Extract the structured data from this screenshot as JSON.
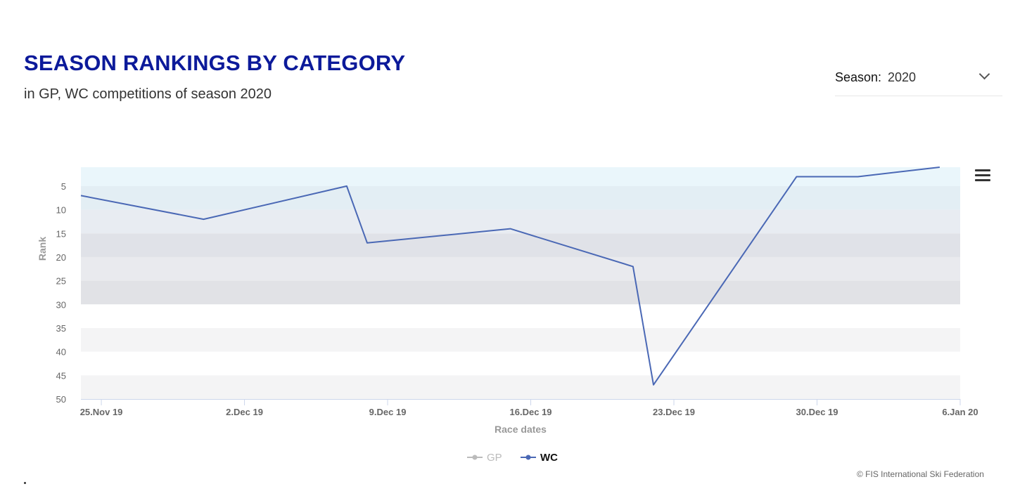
{
  "header": {
    "title": "SEASON RANKINGS BY CATEGORY",
    "subtitle": "in GP, WC competitions of season 2020"
  },
  "season_select": {
    "label": "Season:",
    "value": "2020",
    "icon": "chevron-down-icon"
  },
  "menu": {
    "icon": "hamburger-menu-icon"
  },
  "credit": "© FIS International Ski Federation",
  "chart_data": {
    "type": "line",
    "xlabel": "Race dates",
    "ylabel": "Rank",
    "x_axis_type": "datetime",
    "xlim": [
      "2019-11-24",
      "2020-01-06"
    ],
    "ylim": [
      50,
      1
    ],
    "y_reversed": true,
    "x_ticks": [
      {
        "date": "2019-11-25",
        "label": "25.Nov 19"
      },
      {
        "date": "2019-12-02",
        "label": "2.Dec 19"
      },
      {
        "date": "2019-12-09",
        "label": "9.Dec 19"
      },
      {
        "date": "2019-12-16",
        "label": "16.Dec 19"
      },
      {
        "date": "2019-12-23",
        "label": "23.Dec 19"
      },
      {
        "date": "2019-12-30",
        "label": "30.Dec 19"
      },
      {
        "date": "2020-01-06",
        "label": "6.Jan 20"
      }
    ],
    "y_ticks": [
      5,
      10,
      15,
      20,
      25,
      30,
      35,
      40,
      45,
      50
    ],
    "bands": [
      {
        "from": 1,
        "to": 5,
        "color": "#eaf6fb"
      },
      {
        "from": 5,
        "to": 10,
        "color": "#e3eef4"
      },
      {
        "from": 10,
        "to": 15,
        "color": "#e8ecf2"
      },
      {
        "from": 15,
        "to": 20,
        "color": "#e0e2e8"
      },
      {
        "from": 20,
        "to": 25,
        "color": "#e9eaee"
      },
      {
        "from": 25,
        "to": 30,
        "color": "#e1e2e6"
      },
      {
        "from": 30,
        "to": 35,
        "color": "#ffffff"
      },
      {
        "from": 35,
        "to": 40,
        "color": "#f4f4f5"
      },
      {
        "from": 40,
        "to": 45,
        "color": "#ffffff"
      },
      {
        "from": 45,
        "to": 50,
        "color": "#f4f4f5"
      }
    ],
    "legend_position": "bottom-center",
    "series": [
      {
        "name": "GP",
        "color": "#bbbbbb",
        "visible": false,
        "points": []
      },
      {
        "name": "WC",
        "color": "#4a68b5",
        "visible": true,
        "points": [
          {
            "x": "2019-11-24",
            "y": 7
          },
          {
            "x": "2019-11-30",
            "y": 12
          },
          {
            "x": "2019-12-07",
            "y": 5
          },
          {
            "x": "2019-12-08",
            "y": 17
          },
          {
            "x": "2019-12-15",
            "y": 14
          },
          {
            "x": "2019-12-21",
            "y": 22
          },
          {
            "x": "2019-12-22",
            "y": 47
          },
          {
            "x": "2019-12-29",
            "y": 3
          },
          {
            "x": "2020-01-01",
            "y": 3
          },
          {
            "x": "2020-01-05",
            "y": 1
          }
        ]
      }
    ]
  }
}
